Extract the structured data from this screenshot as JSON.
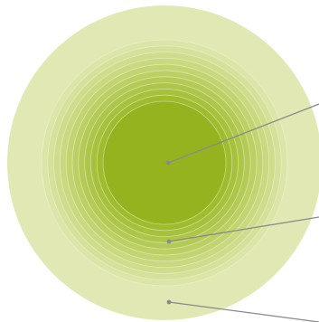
{
  "diagram": {
    "type": "concentric-rings",
    "ring_count": 12,
    "colors": {
      "background": "#ffffff",
      "rings": [
        "#e1e8b4",
        "#dce5a7",
        "#d5e19a",
        "#cfdc8c",
        "#c9d97f",
        "#c2d472",
        "#bbcf63",
        "#b4ca56",
        "#adc549",
        "#a6c13c",
        "#9fbc2f",
        "#94b31e"
      ],
      "ring_edge": "#f1f5dc",
      "callout_line": "#8a8a8a",
      "callout_dot": "#8a8a8a"
    },
    "callouts": [
      {
        "id": "inner",
        "target": "center-core"
      },
      {
        "id": "middle",
        "target": "middle-ring"
      },
      {
        "id": "outer",
        "target": "outer-ring"
      }
    ]
  }
}
